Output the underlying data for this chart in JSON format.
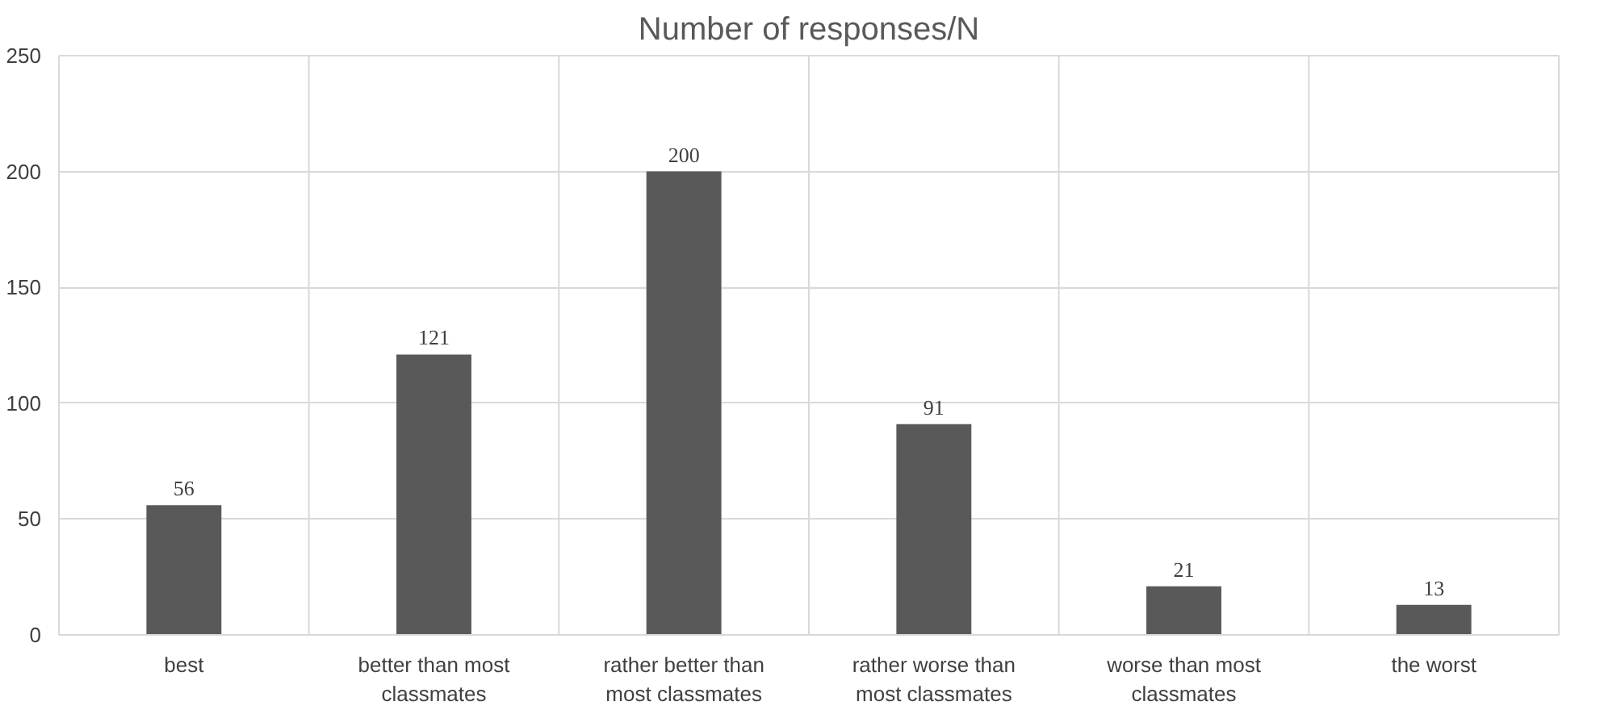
{
  "chart_data": {
    "type": "bar",
    "title": "Number of responses/N",
    "categories": [
      "best",
      "better than most classmates",
      "rather better than most classmates",
      "rather worse than most classmates",
      "worse than most classmates",
      "the worst"
    ],
    "values": [
      56,
      121,
      200,
      91,
      21,
      13
    ],
    "color": "#595959",
    "ylim": [
      0,
      250
    ],
    "yticks": [
      0,
      50,
      100,
      150,
      200,
      250
    ],
    "grid": true,
    "data_labels": true
  }
}
